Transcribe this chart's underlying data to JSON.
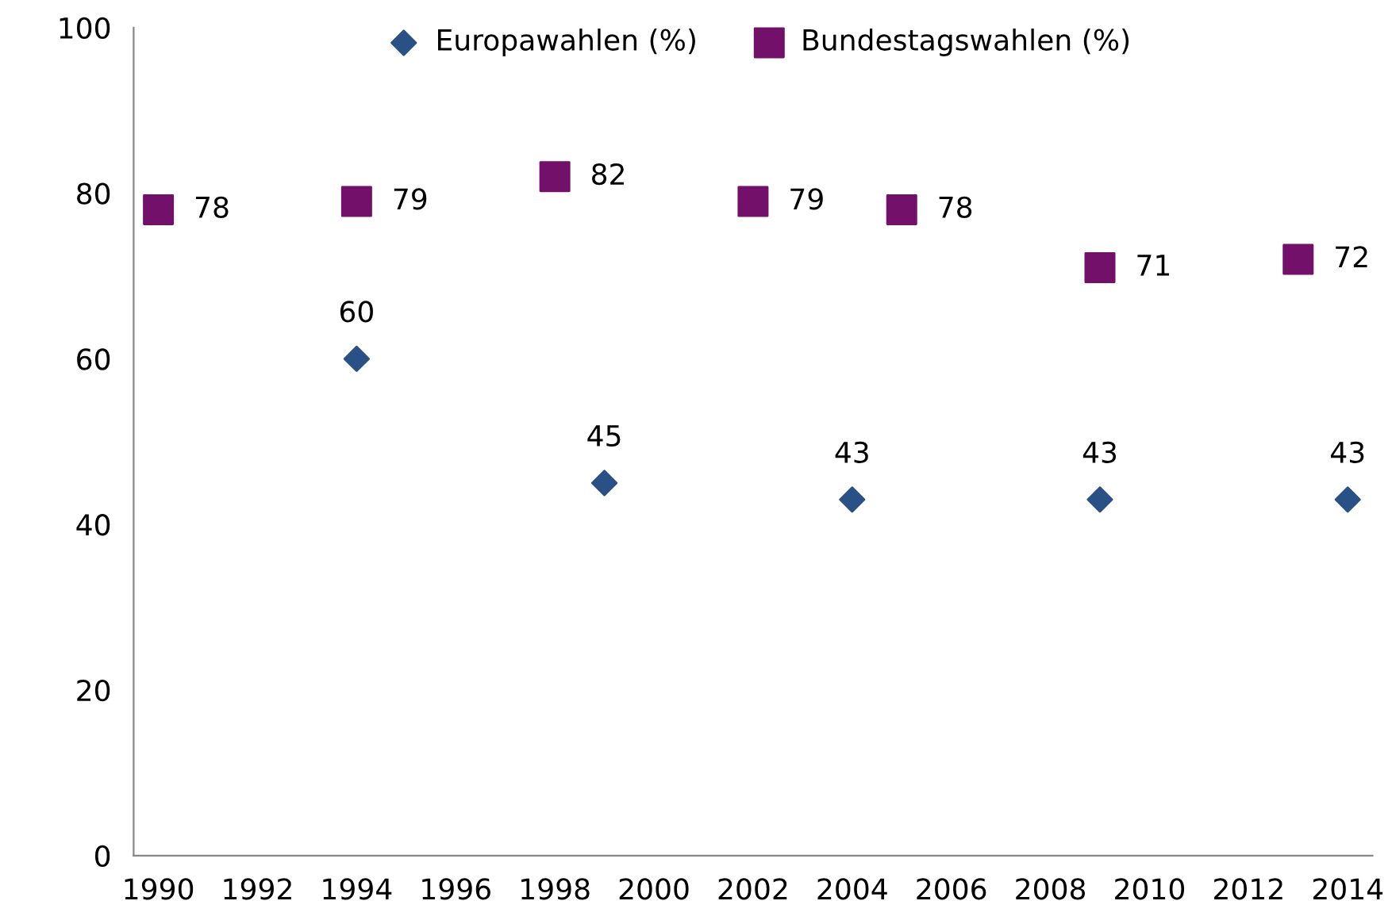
{
  "chart_data": {
    "type": "scatter",
    "xlim": [
      1989.5,
      2014.5
    ],
    "xticks": [
      1990,
      1992,
      1994,
      1996,
      1998,
      2000,
      2002,
      2004,
      2006,
      2008,
      2010,
      2012,
      2014
    ],
    "ylim": [
      0,
      100
    ],
    "yticks": [
      0,
      20,
      40,
      60,
      80,
      100
    ],
    "grid": false,
    "legend": "top",
    "data_labels": true,
    "series": [
      {
        "name": "Europawahlen (%)",
        "color": "#2a5185",
        "marker": "diamond",
        "x": [
          1994,
          1999,
          2004,
          2009,
          2014
        ],
        "values": [
          60,
          45,
          43,
          43,
          43
        ]
      },
      {
        "name": "Bundestagswahlen (%)",
        "color": "#72106a",
        "marker": "square",
        "x": [
          1990,
          1994,
          1998,
          2002,
          2005,
          2009,
          2013
        ],
        "values": [
          78,
          79,
          82,
          79,
          78,
          71,
          72
        ]
      }
    ]
  }
}
